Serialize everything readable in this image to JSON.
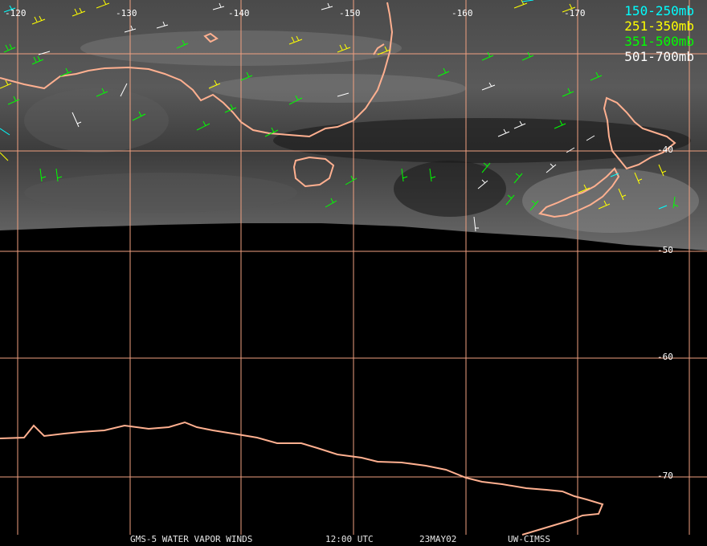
{
  "longitude_labels": [
    "-120",
    "-130",
    "-140",
    "-150",
    "-160",
    "-170"
  ],
  "latitude_labels": [
    "-40",
    "-50",
    "-60",
    "-70"
  ],
  "legend": [
    {
      "label": "150-250mb",
      "color": "#00ffff"
    },
    {
      "label": "251-350mb",
      "color": "#ffff00"
    },
    {
      "label": "351-500mb",
      "color": "#00ff00"
    },
    {
      "label": "501-700mb",
      "color": "#ffffff"
    }
  ],
  "footer": {
    "product": "GMS-5 WATER VAPOR WINDS",
    "time": "12:00 UTC",
    "date": "23MAY02",
    "source": "UW-CIMSS"
  },
  "colors": {
    "grid": "#f0a080",
    "coastline": "#ffb090",
    "background": "#000000"
  }
}
